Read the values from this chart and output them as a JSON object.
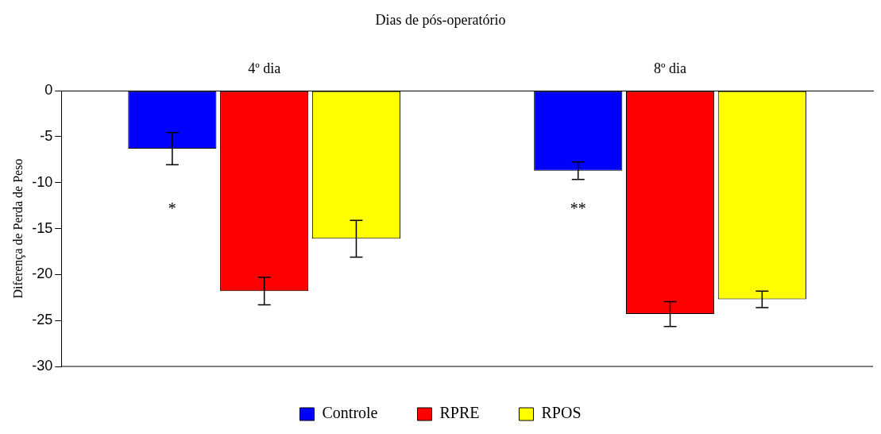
{
  "chart_data": {
    "type": "bar",
    "title": "Dias de pós-operatório",
    "ylabel": "Diferença de Perda de Peso",
    "categories": [
      "4º dia",
      "8º dia"
    ],
    "series": [
      {
        "name": "Controle",
        "color": "#0000ff",
        "values": [
          -6.3,
          -8.7
        ],
        "errors": [
          1.75,
          0.95
        ]
      },
      {
        "name": "RPRE",
        "color": "#ff0000",
        "values": [
          -21.8,
          -24.3
        ],
        "errors": [
          1.5,
          1.35
        ]
      },
      {
        "name": "RPOS",
        "color": "#ffff00",
        "values": [
          -16.1,
          -22.7
        ],
        "errors": [
          2,
          0.9
        ]
      }
    ],
    "ylim": [
      -30,
      0
    ],
    "yticks": [
      0,
      -5,
      -10,
      -15,
      -20,
      -25,
      -30
    ],
    "grid": false,
    "legend": "bottom",
    "annotations": [
      "*",
      "**"
    ]
  }
}
